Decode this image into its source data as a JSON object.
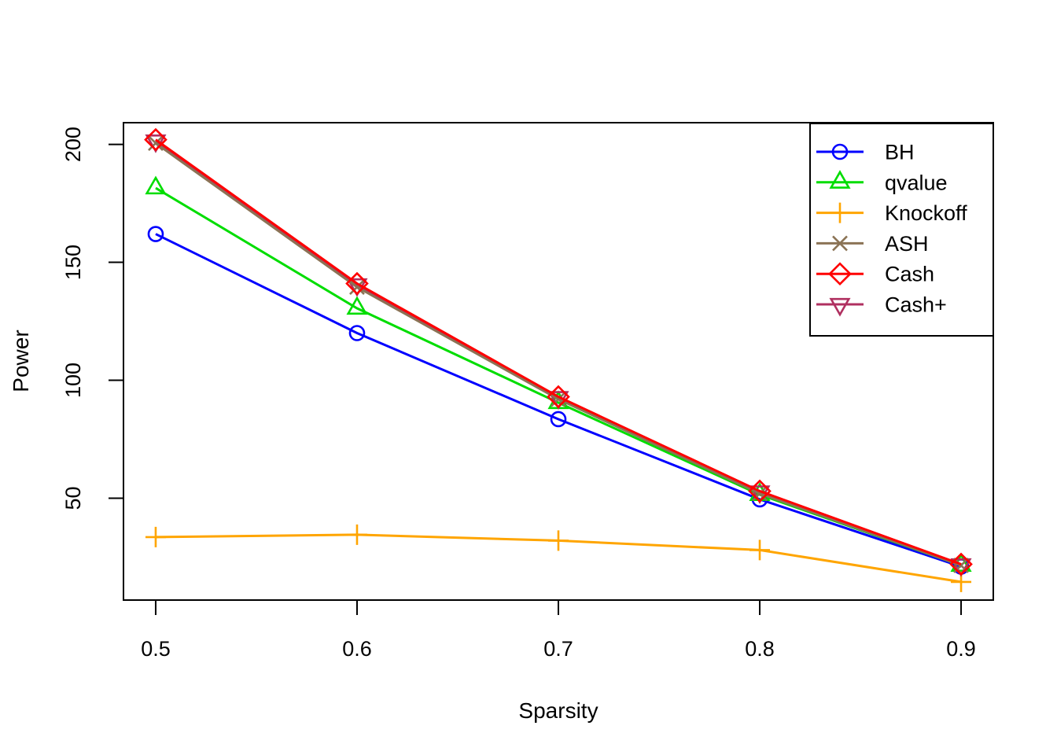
{
  "chart_data": {
    "type": "line",
    "title": "",
    "xlabel": "Sparsity",
    "ylabel": "Power",
    "x": [
      0.5,
      0.6,
      0.7,
      0.8,
      0.9
    ],
    "x_ticks": [
      "0.5",
      "0.6",
      "0.7",
      "0.8",
      "0.9"
    ],
    "x_tick_values": [
      0.5,
      0.6,
      0.7,
      0.8,
      0.9
    ],
    "y_ticks": [
      "50",
      "100",
      "150",
      "200"
    ],
    "y_tick_values": [
      50,
      100,
      150,
      200
    ],
    "xlim": [
      0.484,
      0.916
    ],
    "ylim": [
      6.8,
      209.2
    ],
    "grid": false,
    "legend_position": "top-right",
    "series": [
      {
        "name": "BH",
        "color": "#0000ff",
        "marker": "circle",
        "values": [
          162.0,
          120.0,
          83.5,
          49.5,
          21.0
        ]
      },
      {
        "name": "qvalue",
        "color": "#00dd00",
        "marker": "triangle-up",
        "values": [
          181.5,
          130.5,
          90.5,
          51.5,
          21.5
        ]
      },
      {
        "name": "Knockoff",
        "color": "#ffa500",
        "marker": "plus",
        "values": [
          33.5,
          34.5,
          32.0,
          28.0,
          14.5
        ]
      },
      {
        "name": "ASH",
        "color": "#8b7355",
        "marker": "x",
        "values": [
          200.5,
          139.5,
          92.0,
          52.0,
          21.5
        ]
      },
      {
        "name": "Cash",
        "color": "#ff0000",
        "marker": "diamond",
        "values": [
          202.0,
          141.0,
          93.0,
          53.0,
          22.0
        ]
      },
      {
        "name": "Cash+",
        "color": "#b03060",
        "marker": "triangle-down",
        "values": [
          201.5,
          140.5,
          92.7,
          52.7,
          21.8
        ]
      }
    ],
    "draw_order": [
      "BH",
      "qvalue",
      "Knockoff",
      "Cash+",
      "ASH",
      "Cash"
    ],
    "axis_color": "#000000",
    "background_color": "#ffffff"
  }
}
